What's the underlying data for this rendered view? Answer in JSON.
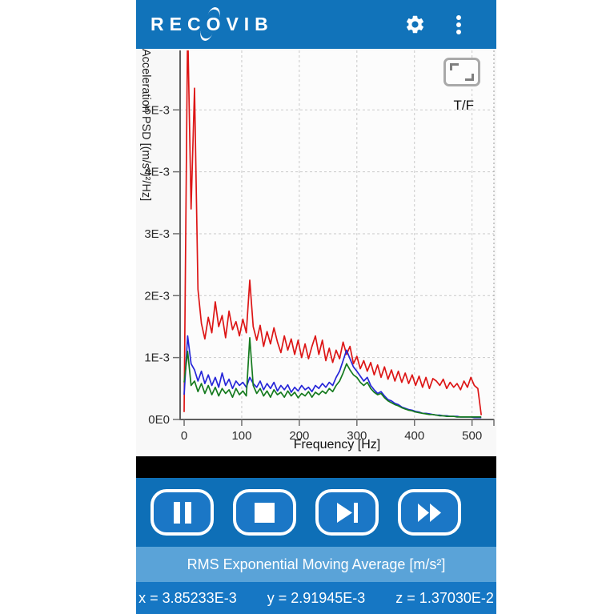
{
  "header": {
    "logo_prefix": "REC",
    "logo_o": "O",
    "logo_suffix": "VIB",
    "settings_icon": "gear",
    "menu_icon": "three-dot-overflow"
  },
  "chart_data": {
    "type": "line",
    "title": "",
    "xlabel": "Frequency [Hz]",
    "ylabel": "Acceleration PSD [(m/s²)²/Hz]",
    "overlay_label": "T/F",
    "fullscreen_icon": "resize-corners",
    "x_ticks": [
      0,
      100,
      200,
      300,
      400,
      500
    ],
    "y_ticks": [
      0,
      1,
      2,
      3,
      4,
      5
    ],
    "y_tick_labels": [
      "0E0",
      "1E-3",
      "2E-3",
      "3E-3",
      "4E-3",
      "5E-3"
    ],
    "y_value_unit": "values are multiples of 1E-3 (m/s²)²/Hz",
    "xlim": [
      -7,
      538
    ],
    "ylim": [
      0,
      5.96
    ],
    "grid": true,
    "legend": "none",
    "x": [
      0,
      6,
      12,
      18,
      24,
      30,
      36,
      42,
      48,
      54,
      60,
      66,
      72,
      78,
      84,
      90,
      96,
      102,
      108,
      114,
      120,
      126,
      132,
      138,
      144,
      150,
      156,
      162,
      168,
      174,
      180,
      186,
      192,
      198,
      204,
      210,
      216,
      222,
      228,
      234,
      240,
      246,
      252,
      258,
      264,
      270,
      276,
      282,
      288,
      294,
      300,
      306,
      312,
      318,
      324,
      330,
      336,
      342,
      348,
      354,
      360,
      366,
      372,
      378,
      384,
      390,
      396,
      402,
      408,
      414,
      420,
      426,
      432,
      438,
      444,
      450,
      456,
      462,
      468,
      474,
      480,
      486,
      492,
      498,
      504,
      510,
      516
    ],
    "series": [
      {
        "name": "x",
        "color": "#dd1616",
        "y": [
          0.12,
          6.4,
          3.4,
          5.35,
          2.1,
          1.55,
          1.3,
          1.65,
          1.4,
          1.9,
          1.5,
          1.68,
          1.32,
          1.75,
          1.45,
          1.58,
          1.35,
          1.62,
          1.4,
          2.25,
          1.5,
          1.28,
          1.52,
          1.18,
          1.42,
          1.22,
          1.48,
          1.25,
          1.08,
          1.35,
          1.12,
          1.3,
          1.05,
          1.28,
          1.0,
          1.22,
          0.98,
          1.18,
          1.35,
          1.05,
          1.28,
          0.95,
          1.15,
          0.92,
          1.12,
          0.98,
          1.25,
          1.05,
          1.18,
          0.9,
          1.02,
          0.82,
          0.95,
          0.78,
          0.92,
          0.72,
          0.88,
          0.68,
          0.85,
          0.65,
          0.8,
          0.62,
          0.78,
          0.6,
          0.75,
          0.58,
          0.72,
          0.55,
          0.7,
          0.52,
          0.68,
          0.5,
          0.66,
          0.62,
          0.55,
          0.65,
          0.5,
          0.6,
          0.52,
          0.58,
          0.48,
          0.62,
          0.52,
          0.68,
          0.55,
          0.5,
          0.07
        ]
      },
      {
        "name": "y",
        "color": "#2626d8",
        "y": [
          0.4,
          1.35,
          0.9,
          0.8,
          0.62,
          0.78,
          0.58,
          0.72,
          0.55,
          0.68,
          0.52,
          0.75,
          0.55,
          0.65,
          0.5,
          0.62,
          0.55,
          0.6,
          0.52,
          0.68,
          0.58,
          0.52,
          0.62,
          0.48,
          0.58,
          0.5,
          0.6,
          0.46,
          0.55,
          0.48,
          0.56,
          0.44,
          0.52,
          0.46,
          0.55,
          0.48,
          0.52,
          0.45,
          0.55,
          0.5,
          0.58,
          0.52,
          0.6,
          0.55,
          0.68,
          0.78,
          0.95,
          1.12,
          0.98,
          0.85,
          0.78,
          0.7,
          0.62,
          0.68,
          0.55,
          0.48,
          0.42,
          0.45,
          0.38,
          0.32,
          0.3,
          0.26,
          0.24,
          0.2,
          0.18,
          0.16,
          0.15,
          0.13,
          0.12,
          0.1,
          0.1,
          0.09,
          0.08,
          0.07,
          0.07,
          0.06,
          0.06,
          0.05,
          0.05,
          0.05,
          0.04,
          0.04,
          0.04,
          0.04,
          0.03,
          0.03,
          0.03
        ]
      },
      {
        "name": "z",
        "color": "#157a1e",
        "y": [
          0.6,
          1.1,
          0.55,
          0.62,
          0.45,
          0.58,
          0.42,
          0.55,
          0.4,
          0.52,
          0.38,
          0.5,
          0.42,
          0.48,
          0.36,
          0.5,
          0.4,
          0.46,
          0.38,
          1.32,
          0.55,
          0.42,
          0.5,
          0.38,
          0.46,
          0.36,
          0.48,
          0.4,
          0.44,
          0.36,
          0.46,
          0.38,
          0.44,
          0.35,
          0.42,
          0.38,
          0.45,
          0.36,
          0.44,
          0.4,
          0.46,
          0.42,
          0.5,
          0.45,
          0.55,
          0.62,
          0.75,
          0.9,
          0.8,
          0.72,
          0.68,
          0.6,
          0.55,
          0.6,
          0.5,
          0.44,
          0.4,
          0.42,
          0.35,
          0.3,
          0.27,
          0.24,
          0.22,
          0.19,
          0.17,
          0.15,
          0.14,
          0.12,
          0.11,
          0.1,
          0.09,
          0.08,
          0.08,
          0.07,
          0.06,
          0.06,
          0.05,
          0.05,
          0.05,
          0.04,
          0.04,
          0.04,
          0.04,
          0.04,
          0.04,
          0.04,
          0.04
        ]
      }
    ]
  },
  "transport": {
    "buttons": [
      {
        "id": "pause",
        "icon": "pause"
      },
      {
        "id": "stop",
        "icon": "stop"
      },
      {
        "id": "skip-next",
        "icon": "skip-next"
      },
      {
        "id": "fast-forward",
        "icon": "fast-forward"
      }
    ]
  },
  "rms_bar": {
    "label": "RMS Exponential Moving Average [m/s²]"
  },
  "values_bar": {
    "items": [
      "x = 3.85233E-3",
      "y = 2.91945E-3",
      "z = 1.37030E-2"
    ]
  },
  "theme": {
    "appbar_blue": "#1173ba",
    "controls_blue": "#0e6fb7",
    "button_blue": "#1b77c6",
    "rms_light_blue": "#5aa3d8",
    "values_blue": "#1677c4"
  }
}
